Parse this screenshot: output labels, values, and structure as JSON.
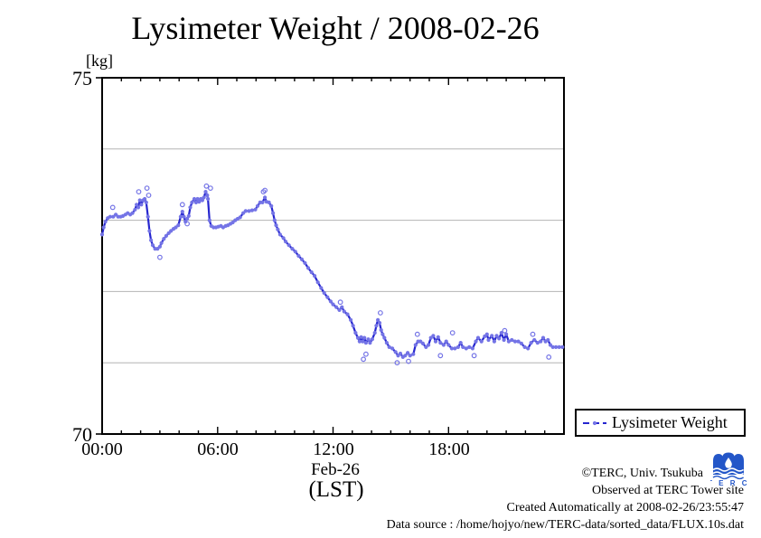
{
  "chart": {
    "title": "Lysimeter Weight / 2008-02-26",
    "y_unit_label": "[kg]",
    "y_top_tick": "75",
    "y_bottom_tick": "70",
    "x_tick_labels": [
      "00:00",
      "06:00",
      "12:00",
      "18:00"
    ],
    "x_date_label": "Feb-26",
    "x_tz_label": "(LST)",
    "legend_label": "Lysimeter Weight"
  },
  "credits": {
    "line1": "©TERC, Univ. Tsukuba",
    "line2": "Observed at TERC Tower site",
    "line3": "Created Automatically at 2008-02-26/23:55:47",
    "line4": "Data source : /home/hojyo/new/TERC-data/sorted_data/FLUX.10s.dat"
  },
  "logo": {
    "letters": "T E R C"
  },
  "chart_data": {
    "type": "line",
    "title": "Lysimeter Weight / 2008-02-26",
    "xlabel": "Feb-26 (LST)",
    "ylabel": "kg",
    "xlim_hours": [
      0,
      24
    ],
    "ylim": [
      70,
      75
    ],
    "x_major_ticks_hours": [
      0,
      6,
      12,
      18,
      24
    ],
    "x_labeled_ticks_hours": [
      0,
      6,
      12,
      18
    ],
    "x_minor_tick_interval_hours": 1,
    "y_labeled_ticks": [
      70,
      75
    ],
    "gridlines_kg": [
      71,
      72,
      73,
      74
    ],
    "grid": true,
    "legend_position": "bottom-right-outside",
    "colors": {
      "line": "#2626cf",
      "marker": "#7474e6",
      "grid": "#b4b4b4",
      "axis": "#000000",
      "logo_blue": "#2356c8",
      "logo_red": "#cc2222"
    },
    "series": [
      {
        "name": "Lysimeter Weight",
        "points_hour_kg": [
          [
            0.0,
            72.8
          ],
          [
            0.08,
            72.9
          ],
          [
            0.17,
            72.98
          ],
          [
            0.29,
            73.03
          ],
          [
            0.42,
            73.05
          ],
          [
            0.58,
            73.05
          ],
          [
            0.71,
            73.08
          ],
          [
            0.83,
            73.05
          ],
          [
            0.96,
            73.05
          ],
          [
            1.08,
            73.06
          ],
          [
            1.21,
            73.08
          ],
          [
            1.33,
            73.1
          ],
          [
            1.46,
            73.08
          ],
          [
            1.58,
            73.1
          ],
          [
            1.71,
            73.15
          ],
          [
            1.79,
            73.22
          ],
          [
            1.88,
            73.18
          ],
          [
            1.96,
            73.28
          ],
          [
            2.04,
            73.22
          ],
          [
            2.13,
            73.28
          ],
          [
            2.21,
            73.3
          ],
          [
            2.29,
            73.25
          ],
          [
            2.38,
            73.05
          ],
          [
            2.46,
            72.85
          ],
          [
            2.54,
            72.72
          ],
          [
            2.63,
            72.65
          ],
          [
            2.75,
            72.6
          ],
          [
            2.88,
            72.6
          ],
          [
            3.0,
            72.63
          ],
          [
            3.08,
            72.68
          ],
          [
            3.21,
            72.74
          ],
          [
            3.33,
            72.78
          ],
          [
            3.46,
            72.82
          ],
          [
            3.58,
            72.85
          ],
          [
            3.71,
            72.88
          ],
          [
            3.83,
            72.9
          ],
          [
            3.96,
            72.93
          ],
          [
            4.08,
            73.05
          ],
          [
            4.17,
            73.12
          ],
          [
            4.25,
            73.05
          ],
          [
            4.33,
            72.98
          ],
          [
            4.42,
            73.02
          ],
          [
            4.5,
            73.06
          ],
          [
            4.58,
            73.18
          ],
          [
            4.67,
            73.25
          ],
          [
            4.79,
            73.3
          ],
          [
            4.88,
            73.25
          ],
          [
            4.96,
            73.3
          ],
          [
            5.04,
            73.26
          ],
          [
            5.13,
            73.3
          ],
          [
            5.21,
            73.28
          ],
          [
            5.29,
            73.32
          ],
          [
            5.38,
            73.4
          ],
          [
            5.46,
            73.35
          ],
          [
            5.5,
            73.3
          ],
          [
            5.58,
            73.0
          ],
          [
            5.67,
            72.92
          ],
          [
            5.79,
            72.9
          ],
          [
            5.92,
            72.9
          ],
          [
            6.04,
            72.91
          ],
          [
            6.17,
            72.92
          ],
          [
            6.29,
            72.9
          ],
          [
            6.42,
            72.92
          ],
          [
            6.54,
            72.93
          ],
          [
            6.67,
            72.95
          ],
          [
            6.79,
            72.97
          ],
          [
            6.92,
            73.0
          ],
          [
            7.04,
            73.02
          ],
          [
            7.17,
            73.04
          ],
          [
            7.33,
            73.1
          ],
          [
            7.46,
            73.13
          ],
          [
            7.63,
            73.13
          ],
          [
            7.79,
            73.14
          ],
          [
            7.96,
            73.15
          ],
          [
            8.08,
            73.2
          ],
          [
            8.21,
            73.25
          ],
          [
            8.33,
            73.25
          ],
          [
            8.46,
            73.32
          ],
          [
            8.54,
            73.26
          ],
          [
            8.67,
            73.25
          ],
          [
            8.79,
            73.2
          ],
          [
            8.88,
            73.1
          ],
          [
            8.96,
            73.0
          ],
          [
            9.04,
            72.93
          ],
          [
            9.13,
            72.87
          ],
          [
            9.25,
            72.8
          ],
          [
            9.42,
            72.75
          ],
          [
            9.54,
            72.7
          ],
          [
            9.71,
            72.65
          ],
          [
            9.88,
            72.6
          ],
          [
            10.04,
            72.56
          ],
          [
            10.21,
            72.5
          ],
          [
            10.38,
            72.45
          ],
          [
            10.54,
            72.4
          ],
          [
            10.71,
            72.33
          ],
          [
            10.88,
            72.27
          ],
          [
            11.04,
            72.22
          ],
          [
            11.21,
            72.13
          ],
          [
            11.38,
            72.05
          ],
          [
            11.54,
            71.98
          ],
          [
            11.71,
            71.92
          ],
          [
            11.88,
            71.86
          ],
          [
            12.0,
            71.82
          ],
          [
            12.17,
            71.78
          ],
          [
            12.33,
            71.74
          ],
          [
            12.46,
            71.78
          ],
          [
            12.58,
            71.72
          ],
          [
            12.75,
            71.68
          ],
          [
            12.92,
            71.6
          ],
          [
            13.04,
            71.52
          ],
          [
            13.17,
            71.42
          ],
          [
            13.29,
            71.35
          ],
          [
            13.38,
            71.3
          ],
          [
            13.46,
            71.36
          ],
          [
            13.54,
            71.3
          ],
          [
            13.63,
            71.35
          ],
          [
            13.71,
            71.28
          ],
          [
            13.83,
            71.33
          ],
          [
            13.92,
            71.28
          ],
          [
            14.04,
            71.33
          ],
          [
            14.17,
            71.42
          ],
          [
            14.25,
            71.52
          ],
          [
            14.33,
            71.6
          ],
          [
            14.42,
            71.56
          ],
          [
            14.5,
            71.46
          ],
          [
            14.58,
            71.4
          ],
          [
            14.67,
            71.35
          ],
          [
            14.79,
            71.28
          ],
          [
            14.92,
            71.22
          ],
          [
            15.08,
            71.2
          ],
          [
            15.25,
            71.15
          ],
          [
            15.38,
            71.1
          ],
          [
            15.5,
            71.13
          ],
          [
            15.63,
            71.08
          ],
          [
            15.75,
            71.1
          ],
          [
            15.88,
            71.14
          ],
          [
            16.0,
            71.1
          ],
          [
            16.17,
            71.12
          ],
          [
            16.29,
            71.25
          ],
          [
            16.42,
            71.3
          ],
          [
            16.54,
            71.3
          ],
          [
            16.67,
            71.27
          ],
          [
            16.83,
            71.22
          ],
          [
            16.96,
            71.25
          ],
          [
            17.08,
            71.35
          ],
          [
            17.21,
            71.38
          ],
          [
            17.33,
            71.3
          ],
          [
            17.46,
            71.36
          ],
          [
            17.58,
            71.28
          ],
          [
            17.75,
            71.25
          ],
          [
            17.88,
            71.3
          ],
          [
            18.0,
            71.25
          ],
          [
            18.17,
            71.2
          ],
          [
            18.33,
            71.2
          ],
          [
            18.5,
            71.22
          ],
          [
            18.63,
            71.28
          ],
          [
            18.75,
            71.22
          ],
          [
            18.92,
            71.2
          ],
          [
            19.08,
            71.22
          ],
          [
            19.25,
            71.2
          ],
          [
            19.42,
            71.3
          ],
          [
            19.54,
            71.35
          ],
          [
            19.71,
            71.3
          ],
          [
            19.88,
            71.37
          ],
          [
            20.0,
            71.4
          ],
          [
            20.08,
            71.32
          ],
          [
            20.25,
            71.38
          ],
          [
            20.38,
            71.3
          ],
          [
            20.5,
            71.38
          ],
          [
            20.63,
            71.34
          ],
          [
            20.75,
            71.42
          ],
          [
            20.88,
            71.32
          ],
          [
            21.0,
            71.4
          ],
          [
            21.13,
            71.3
          ],
          [
            21.29,
            71.32
          ],
          [
            21.46,
            71.3
          ],
          [
            21.63,
            71.3
          ],
          [
            21.79,
            71.27
          ],
          [
            21.96,
            71.22
          ],
          [
            22.13,
            71.2
          ],
          [
            22.29,
            71.28
          ],
          [
            22.46,
            71.32
          ],
          [
            22.63,
            71.28
          ],
          [
            22.79,
            71.3
          ],
          [
            22.92,
            71.35
          ],
          [
            23.04,
            71.3
          ],
          [
            23.17,
            71.32
          ],
          [
            23.29,
            71.25
          ],
          [
            23.42,
            71.22
          ],
          [
            23.58,
            71.22
          ],
          [
            23.75,
            71.22
          ],
          [
            23.92,
            71.22
          ]
        ]
      }
    ],
    "outliers_hour_kg": [
      [
        0.55,
        73.18
      ],
      [
        1.9,
        73.4
      ],
      [
        2.33,
        73.45
      ],
      [
        2.42,
        73.35
      ],
      [
        3.0,
        72.48
      ],
      [
        4.17,
        73.22
      ],
      [
        4.42,
        72.95
      ],
      [
        5.42,
        73.48
      ],
      [
        5.63,
        73.45
      ],
      [
        8.38,
        73.4
      ],
      [
        8.46,
        73.42
      ],
      [
        12.38,
        71.85
      ],
      [
        13.58,
        71.05
      ],
      [
        13.71,
        71.12
      ],
      [
        14.46,
        71.7
      ],
      [
        15.33,
        71.0
      ],
      [
        15.92,
        71.02
      ],
      [
        16.38,
        71.4
      ],
      [
        17.58,
        71.1
      ],
      [
        18.21,
        71.42
      ],
      [
        19.33,
        71.1
      ],
      [
        20.92,
        71.45
      ],
      [
        22.38,
        71.4
      ],
      [
        23.21,
        71.08
      ]
    ]
  }
}
